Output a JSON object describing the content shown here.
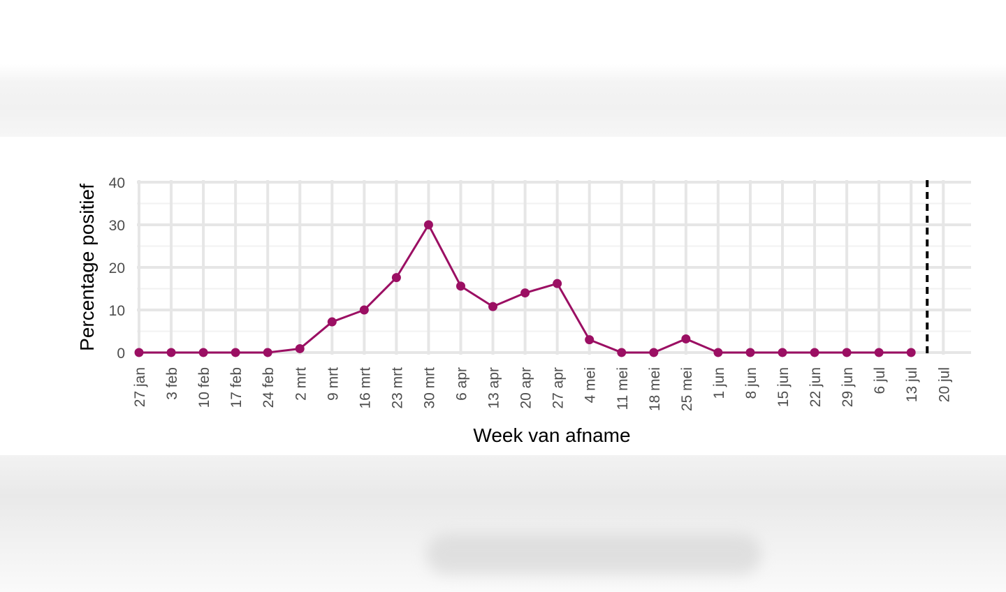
{
  "chart_data": {
    "type": "line",
    "title": "",
    "xlabel": "Week van afname",
    "ylabel": "Percentage positief",
    "categories": [
      "27 jan",
      "3 feb",
      "10 feb",
      "17 feb",
      "24 feb",
      "2 mrt",
      "9 mrt",
      "16 mrt",
      "23 mrt",
      "30 mrt",
      "6 apr",
      "13 apr",
      "20 apr",
      "27 apr",
      "4 mei",
      "11 mei",
      "18 mei",
      "25 mei",
      "1 jun",
      "8 jun",
      "15 jun",
      "22 jun",
      "29 jun",
      "6 jul",
      "13 jul",
      "20 jul"
    ],
    "series": [
      {
        "values": [
          0,
          0,
          0,
          0,
          0,
          0.9,
          7.2,
          10,
          17.6,
          30,
          15.6,
          10.8,
          14,
          16.2,
          3,
          0,
          0,
          3.2,
          0,
          0,
          0,
          0,
          0,
          0,
          0,
          null
        ]
      }
    ],
    "yticks": [
      0,
      10,
      20,
      30,
      40
    ],
    "ylim": [
      -0.5,
      40.5
    ],
    "dashed_marker_after": "13 jul",
    "grid": true,
    "legend": "none",
    "colors": {
      "series": "#9b0f63",
      "grid_major": "#e6e6e6",
      "grid_minor": "#f2f2f2",
      "marker_line": "#000000"
    }
  }
}
